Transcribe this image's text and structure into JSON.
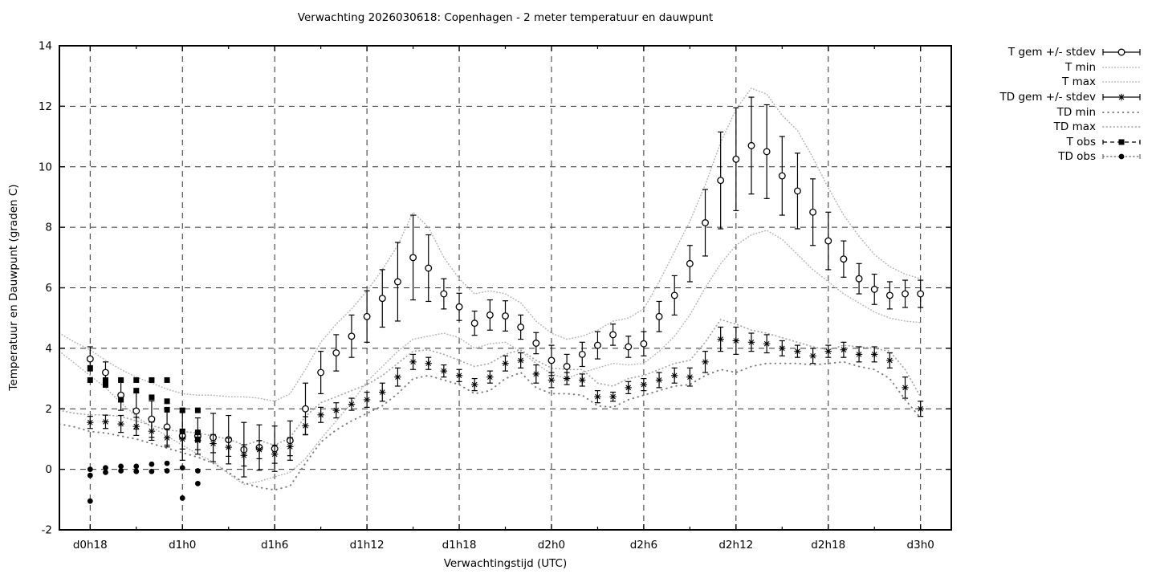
{
  "chart_data": {
    "type": "line",
    "title": "Verwachting 2026030618: Copenhagen - 2 meter temperatuur en dauwpunt",
    "xlabel": "Verwachtingstijd (UTC)",
    "ylabel": "Temperatuur en Dauwpunt (graden C)",
    "ylim": [
      -2,
      14
    ],
    "y_tick_step": 2,
    "x_domain_hours": [
      -2,
      56
    ],
    "x_minor_step_hours": 3,
    "grid": true,
    "legend_position": "outside-right-top",
    "colors": {
      "foreground": "#000000",
      "grid": "#303030",
      "envelope_fine": "#b4b4b4",
      "envelope_medium": "#a6a6a6",
      "envelope_sparse": "#7a7a7a"
    },
    "x_ticks": [
      {
        "t": 0,
        "label": "d0h18"
      },
      {
        "t": 6,
        "label": "d1h0"
      },
      {
        "t": 12,
        "label": "d1h6"
      },
      {
        "t": 18,
        "label": "d1h12"
      },
      {
        "t": 24,
        "label": "d1h18"
      },
      {
        "t": 30,
        "label": "d2h0"
      },
      {
        "t": 36,
        "label": "d2h6"
      },
      {
        "t": 42,
        "label": "d2h12"
      },
      {
        "t": 48,
        "label": "d2h18"
      },
      {
        "t": 54,
        "label": "d3h0"
      }
    ],
    "series": [
      {
        "name": "T gem +/- stdev",
        "style": "errorbar-circle",
        "t0": 0,
        "values": [
          3.65,
          3.2,
          2.45,
          1.93,
          1.66,
          1.4,
          1.1,
          1.1,
          1.05,
          0.98,
          0.65,
          0.72,
          0.68,
          0.95,
          2.0,
          3.2,
          3.85,
          4.4,
          5.05,
          5.65,
          6.2,
          7.0,
          6.65,
          5.8,
          5.37,
          4.83,
          5.1,
          5.07,
          4.7,
          4.17,
          3.6,
          3.4,
          3.8,
          4.1,
          4.45,
          4.05,
          4.15,
          5.05,
          5.75,
          6.8,
          8.15,
          9.55,
          10.25,
          10.7,
          10.5,
          9.7,
          9.2,
          8.5,
          7.55,
          6.95,
          6.3,
          5.95,
          5.75,
          5.8,
          5.8
        ],
        "stdev": [
          0.4,
          0.35,
          0.5,
          0.6,
          0.6,
          0.6,
          0.8,
          0.6,
          0.8,
          0.8,
          0.9,
          0.75,
          0.75,
          0.65,
          0.85,
          0.7,
          0.6,
          0.7,
          0.85,
          0.95,
          1.3,
          1.4,
          1.1,
          0.5,
          0.45,
          0.4,
          0.5,
          0.5,
          0.4,
          0.35,
          0.5,
          0.4,
          0.4,
          0.45,
          0.35,
          0.35,
          0.4,
          0.5,
          0.65,
          0.6,
          1.1,
          1.6,
          1.7,
          1.6,
          1.55,
          1.3,
          1.25,
          1.1,
          0.95,
          0.6,
          0.5,
          0.5,
          0.45,
          0.45,
          0.45
        ]
      },
      {
        "name": "T min",
        "style": "dotted-fine",
        "t0": -2,
        "values": [
          3.9,
          3.5,
          3.1,
          2.7,
          2.2,
          1.75,
          1.4,
          1.1,
          0.8,
          0.5,
          0.25,
          -0.15,
          -0.5,
          -0.4,
          -0.25,
          -0.1,
          0.35,
          1.0,
          1.6,
          2.2,
          2.9,
          3.4,
          3.9,
          4.3,
          4.4,
          4.5,
          4.35,
          4.0,
          4.15,
          4.2,
          3.9,
          3.5,
          3.15,
          3.0,
          3.2,
          3.35,
          3.5,
          3.45,
          3.5,
          3.9,
          4.4,
          5.1,
          6.0,
          6.8,
          7.4,
          7.75,
          7.9,
          7.6,
          7.1,
          6.6,
          6.2,
          5.8,
          5.5,
          5.2,
          5.0,
          4.9,
          4.85
        ]
      },
      {
        "name": "T max",
        "style": "dotted-fine",
        "t0": -2,
        "values": [
          4.5,
          4.2,
          3.95,
          3.6,
          3.3,
          3.05,
          2.85,
          2.65,
          2.5,
          2.45,
          2.45,
          2.4,
          2.4,
          2.35,
          2.25,
          2.5,
          3.3,
          4.2,
          4.8,
          5.3,
          5.9,
          6.6,
          7.4,
          8.5,
          8.0,
          7.0,
          6.3,
          5.8,
          5.9,
          5.8,
          5.5,
          4.9,
          4.5,
          4.3,
          4.4,
          4.6,
          4.9,
          5.0,
          5.3,
          6.2,
          7.2,
          8.2,
          9.4,
          10.8,
          11.9,
          12.6,
          12.4,
          11.7,
          11.2,
          10.3,
          9.3,
          8.4,
          7.7,
          7.1,
          6.7,
          6.45,
          6.3
        ]
      },
      {
        "name": "TD gem +/- stdev",
        "style": "errorbar-asterisk",
        "t0": 0,
        "values": [
          1.55,
          1.57,
          1.5,
          1.42,
          1.26,
          1.04,
          1.0,
          0.95,
          0.85,
          0.73,
          0.46,
          0.65,
          0.5,
          0.75,
          1.44,
          1.8,
          1.95,
          2.15,
          2.3,
          2.55,
          3.05,
          3.55,
          3.5,
          3.25,
          3.1,
          2.8,
          3.05,
          3.5,
          3.6,
          3.15,
          2.95,
          3.0,
          2.95,
          2.4,
          2.4,
          2.7,
          2.8,
          2.95,
          3.1,
          3.05,
          3.55,
          4.3,
          4.25,
          4.2,
          4.15,
          4.0,
          3.9,
          3.75,
          3.9,
          3.95,
          3.8,
          3.8,
          3.6,
          2.7,
          2.0
        ],
        "stdev": [
          0.2,
          0.22,
          0.28,
          0.3,
          0.3,
          0.3,
          0.33,
          0.3,
          0.3,
          0.3,
          0.35,
          0.3,
          0.3,
          0.3,
          0.3,
          0.25,
          0.25,
          0.2,
          0.25,
          0.3,
          0.3,
          0.25,
          0.2,
          0.2,
          0.2,
          0.2,
          0.2,
          0.25,
          0.25,
          0.3,
          0.25,
          0.2,
          0.2,
          0.2,
          0.15,
          0.2,
          0.2,
          0.25,
          0.25,
          0.3,
          0.35,
          0.4,
          0.45,
          0.3,
          0.3,
          0.25,
          0.2,
          0.25,
          0.2,
          0.25,
          0.25,
          0.25,
          0.25,
          0.35,
          0.25
        ]
      },
      {
        "name": "TD min",
        "style": "dotted-sparse",
        "t0": -2,
        "values": [
          1.5,
          1.4,
          1.25,
          1.2,
          1.1,
          1.0,
          0.85,
          0.7,
          0.55,
          0.4,
          0.2,
          -0.1,
          -0.45,
          -0.6,
          -0.68,
          -0.55,
          0.2,
          0.9,
          1.3,
          1.6,
          1.85,
          2.1,
          2.5,
          3.0,
          3.1,
          2.95,
          2.8,
          2.5,
          2.6,
          3.0,
          3.2,
          2.7,
          2.5,
          2.5,
          2.45,
          2.1,
          2.05,
          2.3,
          2.45,
          2.6,
          2.75,
          2.8,
          3.1,
          3.3,
          3.2,
          3.4,
          3.5,
          3.5,
          3.5,
          3.45,
          3.5,
          3.55,
          3.4,
          3.3,
          3.0,
          2.3,
          1.7
        ]
      },
      {
        "name": "TD max",
        "style": "dotted-medium",
        "t0": -2,
        "values": [
          1.95,
          1.85,
          1.8,
          1.8,
          1.75,
          1.6,
          1.45,
          1.3,
          1.25,
          1.2,
          1.1,
          1.0,
          0.8,
          0.95,
          0.8,
          1.05,
          1.75,
          2.2,
          2.4,
          2.6,
          2.8,
          3.1,
          3.5,
          3.9,
          3.95,
          3.8,
          3.6,
          3.4,
          3.5,
          3.8,
          3.95,
          3.6,
          3.35,
          3.3,
          3.3,
          2.85,
          2.75,
          3.0,
          3.1,
          3.3,
          3.5,
          3.6,
          4.2,
          4.95,
          4.8,
          4.6,
          4.5,
          4.35,
          4.2,
          4.05,
          3.95,
          4.1,
          4.05,
          4.0,
          3.9,
          3.3,
          2.4
        ]
      },
      {
        "name": "T obs",
        "style": "points-square-dashed",
        "points": [
          [
            0,
            3.35
          ],
          [
            0,
            2.95
          ],
          [
            1,
            2.95
          ],
          [
            1,
            2.87
          ],
          [
            1,
            2.79
          ],
          [
            2,
            2.95
          ],
          [
            2,
            2.3
          ],
          [
            3,
            2.95
          ],
          [
            3,
            2.6
          ],
          [
            4,
            2.95
          ],
          [
            4,
            2.38
          ],
          [
            5,
            2.95
          ],
          [
            5,
            2.25
          ],
          [
            5,
            1.97
          ],
          [
            6,
            1.95
          ],
          [
            6,
            1.25
          ],
          [
            7,
            1.95
          ],
          [
            7,
            1.22
          ],
          [
            7,
            0.99
          ]
        ]
      },
      {
        "name": "TD obs",
        "style": "points-dot-dotted",
        "points": [
          [
            0,
            0.0
          ],
          [
            0,
            -0.2
          ],
          [
            0,
            -1.05
          ],
          [
            1,
            0.05
          ],
          [
            1,
            -0.1
          ],
          [
            2,
            0.1
          ],
          [
            2,
            -0.05
          ],
          [
            3,
            0.1
          ],
          [
            3,
            -0.07
          ],
          [
            4,
            0.17
          ],
          [
            4,
            -0.07
          ],
          [
            5,
            0.2
          ],
          [
            5,
            -0.05
          ],
          [
            6,
            0.05
          ],
          [
            6,
            -0.95
          ],
          [
            7,
            -0.05
          ],
          [
            7,
            -0.47
          ]
        ]
      }
    ]
  }
}
